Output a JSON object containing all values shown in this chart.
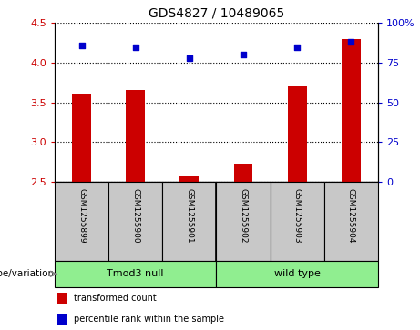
{
  "title": "GDS4827 / 10489065",
  "samples": [
    "GSM1255899",
    "GSM1255900",
    "GSM1255901",
    "GSM1255902",
    "GSM1255903",
    "GSM1255904"
  ],
  "transformed_counts": [
    3.61,
    3.66,
    2.57,
    2.73,
    3.7,
    4.3
  ],
  "percentile_ranks": [
    86,
    85,
    78,
    80,
    85,
    88
  ],
  "ylim_left": [
    2.5,
    4.5
  ],
  "ylim_right": [
    0,
    100
  ],
  "yticks_left": [
    2.5,
    3.0,
    3.5,
    4.0,
    4.5
  ],
  "yticks_right": [
    0,
    25,
    50,
    75,
    100
  ],
  "groups": [
    {
      "label": "Tmod3 null",
      "start": 0,
      "end": 3
    },
    {
      "label": "wild type",
      "start": 3,
      "end": 6
    }
  ],
  "group_color": "#90EE90",
  "group_label": "genotype/variation",
  "bar_color": "#CC0000",
  "point_color": "#0000CC",
  "bar_width": 0.35,
  "legend_items": [
    {
      "label": "transformed count",
      "color": "#CC0000"
    },
    {
      "label": "percentile rank within the sample",
      "color": "#0000CC"
    }
  ],
  "left_tick_color": "#CC0000",
  "right_tick_color": "#0000CC",
  "sample_box_color": "#C8C8C8",
  "fig_width": 4.61,
  "fig_height": 3.63,
  "dpi": 100
}
